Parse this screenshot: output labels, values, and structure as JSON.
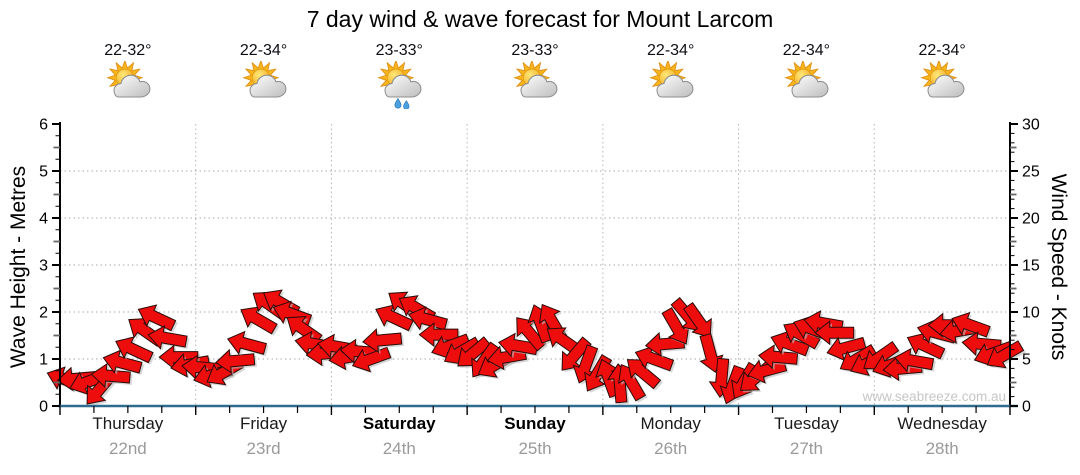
{
  "title": "7 day wind & wave forecast for Mount Larcom",
  "watermark": "www.seabreeze.com.au",
  "colors": {
    "arrow_fill": "#ee0d0d",
    "arrow_outline": "#2b0b06",
    "arrow_shadow": "#bcbcbc",
    "x_axis_line": "#2f6b8f",
    "gridline": "#aaaaaa",
    "day_separator": "#b5b5b5",
    "tick_major": "#000000",
    "tick_medium": "#666666",
    "day_name_text": "#1a1a1a",
    "date_text": "#9a9a9a",
    "temp_text": "#0d0d14",
    "watermark_text": "#c6c6c6"
  },
  "left_axis": {
    "label": "Wave Height - Metres",
    "min": 0,
    "max": 6,
    "major_step": 1,
    "minor_step": 0.25,
    "tick_labels": [
      "0",
      "1",
      "2",
      "3",
      "4",
      "5",
      "6"
    ]
  },
  "right_axis": {
    "label": "Wind Speed - Knots",
    "min": 0,
    "max": 30,
    "major_step": 5,
    "minor_step": 1,
    "tick_labels": [
      "0",
      "5",
      "10",
      "15",
      "20",
      "25",
      "30"
    ]
  },
  "chart_data": {
    "type": "wind-arrow-series",
    "sample_interval_hours": 2,
    "dir_degrees_convention": "0 = arrow points right (east on page), angles increase clockwise",
    "days": [
      {
        "name": "Thursday",
        "date": "22nd",
        "weekend": false,
        "temp": "22-32°",
        "icon": "sun-cloud",
        "wind_knots": [
          2.8,
          2.9,
          2.6,
          1.8,
          3.2,
          4.6,
          6.0,
          8.0,
          9.4,
          7.2,
          5.2,
          4.4
        ],
        "wind_dir_deg": [
          200,
          175,
          160,
          130,
          185,
          195,
          205,
          215,
          205,
          190,
          180,
          170
        ]
      },
      {
        "name": "Friday",
        "date": "23rd",
        "weekend": false,
        "temp": "22-34°",
        "icon": "sun-cloud",
        "wind_knots": [
          4.1,
          3.3,
          3.6,
          4.8,
          6.6,
          9.2,
          10.8,
          11.0,
          9.8,
          8.2,
          6.6,
          5.6
        ],
        "wind_dir_deg": [
          185,
          165,
          150,
          175,
          195,
          210,
          215,
          210,
          200,
          215,
          190,
          175
        ]
      },
      {
        "name": "Saturday",
        "date": "24th",
        "weekend": true,
        "temp": "23-33°",
        "icon": "sun-cloud-showers",
        "wind_knots": [
          6.3,
          5.2,
          5.8,
          5.0,
          7.0,
          9.4,
          10.8,
          10.4,
          9.2,
          7.6,
          6.4,
          5.8
        ],
        "wind_dir_deg": [
          190,
          170,
          185,
          160,
          175,
          205,
          215,
          210,
          195,
          180,
          160,
          150
        ]
      },
      {
        "name": "Sunday",
        "date": "25th",
        "weekend": true,
        "temp": "23-33°",
        "icon": "sun-cloud",
        "wind_knots": [
          5.6,
          4.8,
          4.4,
          5.2,
          6.4,
          7.8,
          8.8,
          9.0,
          7.0,
          5.4,
          4.4,
          3.4
        ],
        "wind_dir_deg": [
          140,
          125,
          150,
          170,
          190,
          230,
          250,
          240,
          215,
          130,
          110,
          120
        ]
      },
      {
        "name": "Monday",
        "date": "26th",
        "weekend": false,
        "temp": "22-34°",
        "icon": "sun-cloud",
        "wind_knots": [
          3.0,
          2.4,
          2.6,
          3.6,
          5.0,
          6.6,
          8.4,
          9.6,
          9.0,
          5.6,
          3.0,
          2.2
        ],
        "wind_dir_deg": [
          250,
          265,
          240,
          220,
          200,
          175,
          60,
          50,
          55,
          75,
          95,
          110
        ]
      },
      {
        "name": "Tuesday",
        "date": "27th",
        "weekend": false,
        "temp": "22-34°",
        "icon": "sun-cloud",
        "wind_knots": [
          2.6,
          3.0,
          3.8,
          5.2,
          6.6,
          7.6,
          8.2,
          8.8,
          7.8,
          6.2,
          5.0,
          4.6
        ],
        "wind_dir_deg": [
          120,
          140,
          165,
          185,
          200,
          210,
          200,
          190,
          180,
          165,
          150,
          155
        ]
      },
      {
        "name": "Wednesday",
        "date": "28th",
        "weekend": false,
        "temp": "22-34°",
        "icon": "sun-cloud",
        "wind_knots": [
          5.2,
          4.4,
          4.0,
          4.8,
          6.4,
          7.8,
          8.6,
          8.0,
          8.6,
          6.6,
          5.6,
          5.4
        ],
        "wind_dir_deg": [
          145,
          160,
          175,
          190,
          205,
          195,
          180,
          170,
          200,
          185,
          160,
          150
        ]
      }
    ]
  }
}
